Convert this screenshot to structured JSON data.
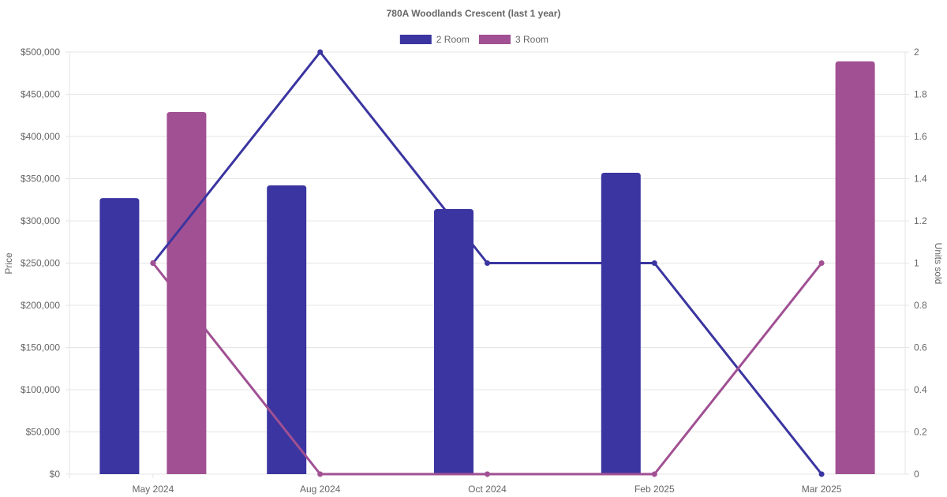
{
  "chart_data": {
    "type": "bar",
    "title": "780A Woodlands Crescent (last 1 year)",
    "categories": [
      "May 2024",
      "Aug 2024",
      "Oct 2024",
      "Feb 2025",
      "Mar 2025"
    ],
    "legend": {
      "position": "top-center"
    },
    "grid": true,
    "y_left": {
      "label": "Price",
      "range": [
        0,
        500000
      ],
      "ticks": [
        0,
        50000,
        100000,
        150000,
        200000,
        250000,
        300000,
        350000,
        400000,
        450000,
        500000
      ],
      "tick_labels": [
        "$0",
        "$50,000",
        "$100,000",
        "$150,000",
        "$200,000",
        "$250,000",
        "$300,000",
        "$350,000",
        "$400,000",
        "$450,000",
        "$500,000"
      ]
    },
    "y_right": {
      "label": "Units sold",
      "range": [
        0,
        2
      ],
      "ticks": [
        0,
        0.2,
        0.4,
        0.6,
        0.8,
        1,
        1.2,
        1.4,
        1.6,
        1.8,
        2
      ],
      "tick_labels": [
        "0",
        "0.2",
        "0.4",
        "0.6",
        "0.8",
        "1",
        "1.2",
        "1.4",
        "1.6",
        "1.8",
        "2"
      ]
    },
    "series": [
      {
        "name": "2 Room",
        "kind": "bar",
        "axis": "left",
        "color": "#3a35a0",
        "values": [
          327000,
          342000,
          314000,
          357000,
          null
        ]
      },
      {
        "name": "3 Room",
        "kind": "bar",
        "axis": "left",
        "color": "#a05093",
        "values": [
          429000,
          null,
          null,
          null,
          489000
        ]
      },
      {
        "legend": "2 Room",
        "kind": "line",
        "axis": "right",
        "color": "#3a35a0",
        "values": [
          1,
          2,
          1,
          1,
          0
        ]
      },
      {
        "legend": "3 Room",
        "kind": "line",
        "axis": "right",
        "color": "#a05093",
        "values": [
          1,
          0,
          0,
          0,
          1
        ]
      }
    ]
  }
}
